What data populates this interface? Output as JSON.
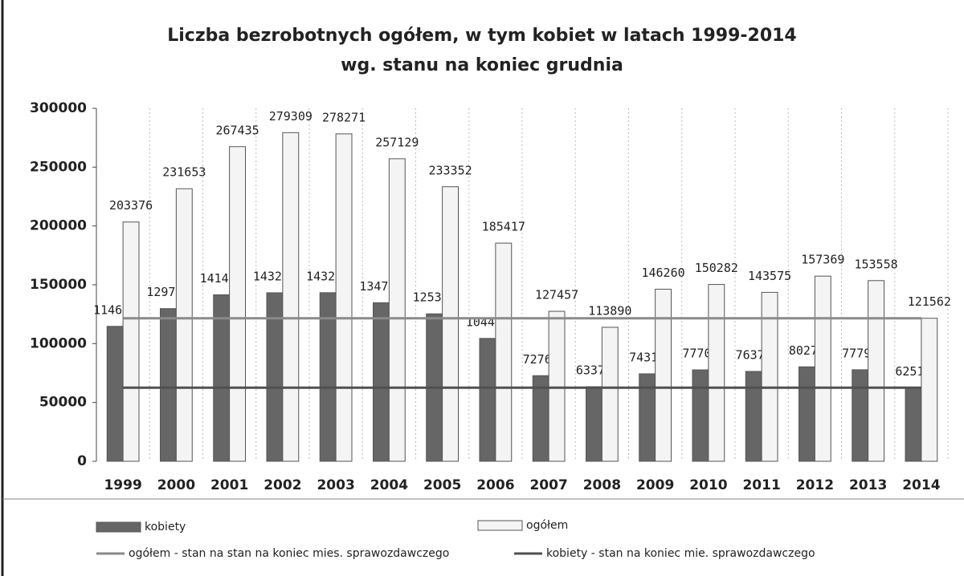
{
  "chart_data": {
    "type": "bar",
    "title": "Liczba bezrobotnych  ogółem, w tym kobiet w latach 1999-2014",
    "subtitle": "wg. stanu na koniec  grudnia",
    "categories": [
      "1999",
      "2000",
      "2001",
      "2002",
      "2003",
      "2004",
      "2005",
      "2006",
      "2007",
      "2008",
      "2009",
      "2010",
      "2011",
      "2012",
      "2013",
      "2014"
    ],
    "series": [
      {
        "name": "kobiety",
        "type": "bar",
        "color": "#666666",
        "values": [
          114678,
          129767,
          141470,
          143208,
          143289,
          134747,
          125300,
          104435,
          72761,
          63378,
          74319,
          77700,
          76375,
          80277,
          77794,
          62518
        ]
      },
      {
        "name": "ogółem",
        "type": "bar",
        "color": "#f4f4f4",
        "values": [
          203376,
          231653,
          267435,
          279309,
          278271,
          257129,
          233352,
          185417,
          127457,
          113890,
          146260,
          150282,
          143575,
          157369,
          153558,
          121562
        ]
      },
      {
        "name": "ogółem - stan na  stan na koniec mies. sprawozdawczego",
        "type": "line",
        "color": "#8a8a8a",
        "values": [
          121562,
          121562,
          121562,
          121562,
          121562,
          121562,
          121562,
          121562,
          121562,
          121562,
          121562,
          121562,
          121562,
          121562,
          121562,
          121562
        ]
      },
      {
        "name": "kobiety - stan na koniec mie. sprawozdawczego",
        "type": "line",
        "color": "#505050",
        "values": [
          62518,
          62518,
          62518,
          62518,
          62518,
          62518,
          62518,
          62518,
          62518,
          62518,
          62518,
          62518,
          62518,
          62518,
          62518,
          62518
        ]
      }
    ],
    "ylim": [
      0,
      300000
    ],
    "yticks": [
      0,
      50000,
      100000,
      150000,
      200000,
      250000,
      300000
    ]
  }
}
